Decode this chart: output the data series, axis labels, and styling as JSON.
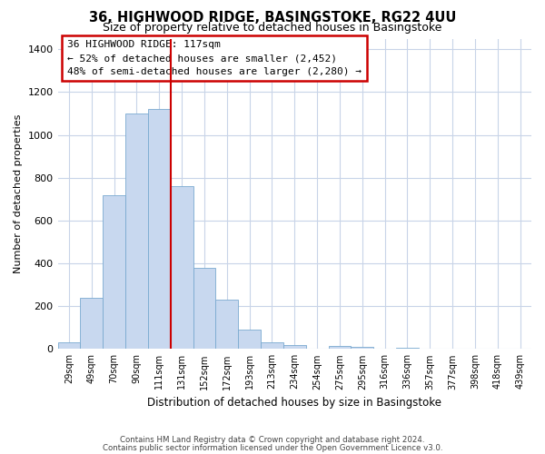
{
  "title": "36, HIGHWOOD RIDGE, BASINGSTOKE, RG22 4UU",
  "subtitle": "Size of property relative to detached houses in Basingstoke",
  "xlabel": "Distribution of detached houses by size in Basingstoke",
  "ylabel": "Number of detached properties",
  "bar_labels": [
    "29sqm",
    "49sqm",
    "70sqm",
    "90sqm",
    "111sqm",
    "131sqm",
    "152sqm",
    "172sqm",
    "193sqm",
    "213sqm",
    "234sqm",
    "254sqm",
    "275sqm",
    "295sqm",
    "316sqm",
    "336sqm",
    "357sqm",
    "377sqm",
    "398sqm",
    "418sqm",
    "439sqm"
  ],
  "bar_values": [
    30,
    240,
    720,
    1100,
    1120,
    760,
    380,
    230,
    90,
    30,
    20,
    0,
    15,
    10,
    0,
    5,
    0,
    0,
    0,
    0,
    0
  ],
  "bar_color": "#c8d8ef",
  "bar_edge_color": "#7aaad0",
  "vline_x": 4.5,
  "vline_color": "#cc0000",
  "ylim": [
    0,
    1450
  ],
  "yticks": [
    0,
    200,
    400,
    600,
    800,
    1000,
    1200,
    1400
  ],
  "annotation_title": "36 HIGHWOOD RIDGE: 117sqm",
  "annotation_line1": "← 52% of detached houses are smaller (2,452)",
  "annotation_line2": "48% of semi-detached houses are larger (2,280) →",
  "annotation_box_color": "#ffffff",
  "annotation_box_edge": "#cc0000",
  "footer_line1": "Contains HM Land Registry data © Crown copyright and database right 2024.",
  "footer_line2": "Contains public sector information licensed under the Open Government Licence v3.0.",
  "background_color": "#ffffff",
  "grid_color": "#c8d4e8"
}
